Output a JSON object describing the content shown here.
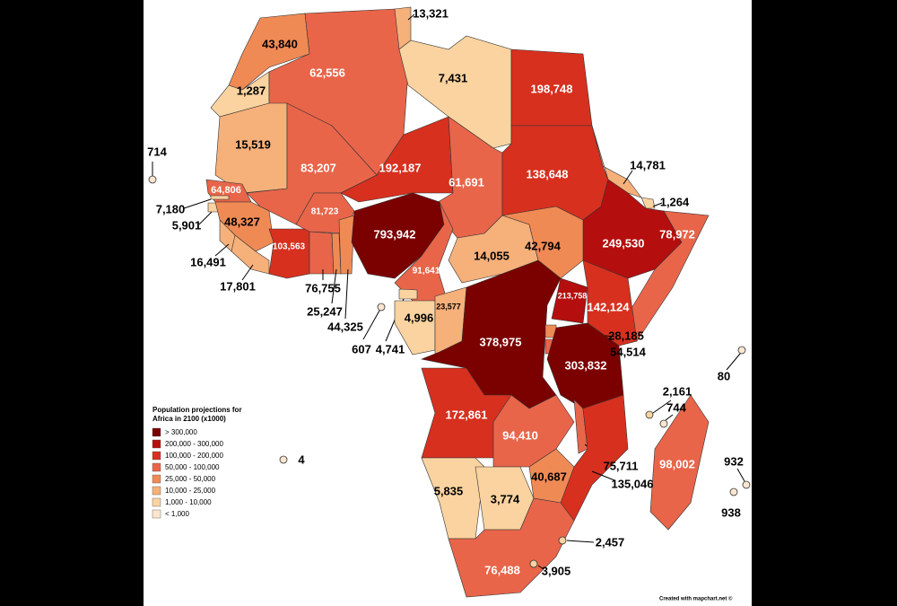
{
  "legend": {
    "title": [
      "Population projections for",
      "Africa in 2100 (x1000)"
    ],
    "items": [
      {
        "label": "> 300,000",
        "color": "#7b0000"
      },
      {
        "label": "200,000 - 300,000",
        "color": "#b50e0e"
      },
      {
        "label": "100,000 - 200,000",
        "color": "#d7301f"
      },
      {
        "label": "50,000 - 100,000",
        "color": "#e8654a"
      },
      {
        "label": "25,000 - 50,000",
        "color": "#f08a55"
      },
      {
        "label": "10,000 - 25,000",
        "color": "#f6b07a"
      },
      {
        "label": "1,000 - 10,000",
        "color": "#fad3a0"
      },
      {
        "label": "< 1,000",
        "color": "#fde6cf"
      }
    ]
  },
  "regions": [
    {
      "label": "43,840",
      "color": "#f08a55"
    },
    {
      "label": "1,287",
      "color": "#fad3a0"
    },
    {
      "label": "62,556",
      "color": "#e8654a"
    },
    {
      "label": "13,321",
      "color": "#f6b07a"
    },
    {
      "label": "7,431",
      "color": "#fad3a0"
    },
    {
      "label": "198,748",
      "color": "#d7301f"
    },
    {
      "label": "15,519",
      "color": "#f6b07a"
    },
    {
      "label": "83,207",
      "color": "#e8654a"
    },
    {
      "label": "192,187",
      "color": "#d7301f"
    },
    {
      "label": "61,691",
      "color": "#e8654a"
    },
    {
      "label": "138,648",
      "color": "#d7301f"
    },
    {
      "label": "14,781",
      "color": "#f6b07a"
    },
    {
      "label": "1,264",
      "color": "#fad3a0"
    },
    {
      "label": "249,530",
      "color": "#b50e0e"
    },
    {
      "label": "78,972",
      "color": "#e8654a"
    },
    {
      "label": "64,806",
      "color": "#e8654a"
    },
    {
      "label": "7,180",
      "color": "#fad3a0"
    },
    {
      "label": "5,901",
      "color": "#fad3a0"
    },
    {
      "label": "48,327",
      "color": "#f08a55"
    },
    {
      "label": "16,491",
      "color": "#f6b07a"
    },
    {
      "label": "17,801",
      "color": "#f6b07a"
    },
    {
      "label": "103,563",
      "color": "#d7301f"
    },
    {
      "label": "81,723",
      "color": "#e8654a"
    },
    {
      "label": "76,755",
      "color": "#e8654a"
    },
    {
      "label": "25,247",
      "color": "#f08a55"
    },
    {
      "label": "44,325",
      "color": "#f08a55"
    },
    {
      "label": "793,942",
      "color": "#7b0000"
    },
    {
      "label": "91,641",
      "color": "#e8654a"
    },
    {
      "label": "714",
      "color": "#fde6cf"
    },
    {
      "label": "607",
      "color": "#fde6cf"
    },
    {
      "label": "4,741",
      "color": "#fad3a0"
    },
    {
      "label": "4,996",
      "color": "#fad3a0"
    },
    {
      "label": "23,577",
      "color": "#f6b07a"
    },
    {
      "label": "14,055",
      "color": "#f6b07a"
    },
    {
      "label": "42,794",
      "color": "#f08a55"
    },
    {
      "label": "378,975",
      "color": "#7b0000"
    },
    {
      "label": "213,758",
      "color": "#b50e0e"
    },
    {
      "label": "142,124",
      "color": "#d7301f"
    },
    {
      "label": "28,185",
      "color": "#f08a55"
    },
    {
      "label": "54,514",
      "color": "#e8654a"
    },
    {
      "label": "303,832",
      "color": "#7b0000"
    },
    {
      "label": "80",
      "color": "#fde6cf"
    },
    {
      "label": "172,861",
      "color": "#d7301f"
    },
    {
      "label": "94,410",
      "color": "#e8654a"
    },
    {
      "label": "75,711",
      "color": "#e8654a"
    },
    {
      "label": "135,046",
      "color": "#d7301f"
    },
    {
      "label": "2,161",
      "color": "#fad3a0"
    },
    {
      "label": "744",
      "color": "#fde6cf"
    },
    {
      "label": "98,002",
      "color": "#e8654a"
    },
    {
      "label": "932",
      "color": "#fde6cf"
    },
    {
      "label": "938",
      "color": "#fde6cf"
    },
    {
      "label": "5,835",
      "color": "#fad3a0"
    },
    {
      "label": "3,774",
      "color": "#fad3a0"
    },
    {
      "label": "40,687",
      "color": "#f08a55"
    },
    {
      "label": "76,488",
      "color": "#e8654a"
    },
    {
      "label": "2,457",
      "color": "#fad3a0"
    },
    {
      "label": "3,905",
      "color": "#fad3a0"
    },
    {
      "label": "4",
      "color": "#fde6cf"
    }
  ],
  "credit": "Created with mapchart.net ©"
}
